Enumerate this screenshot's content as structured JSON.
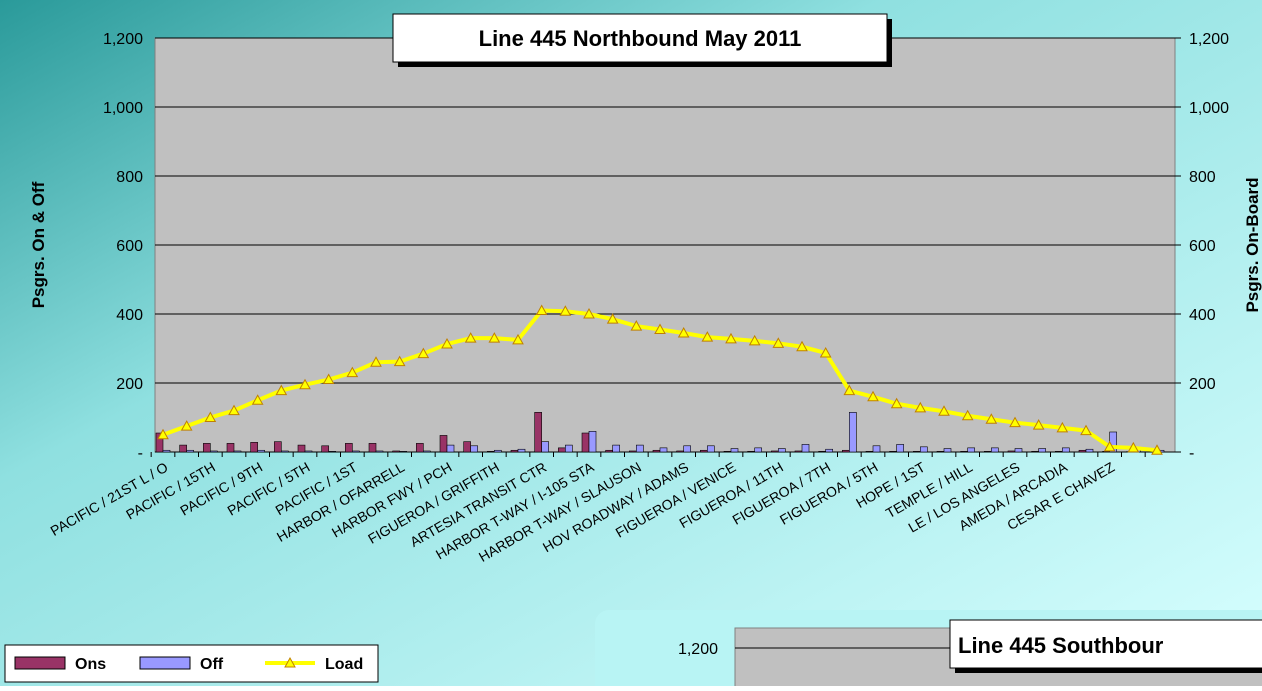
{
  "chart_data": [
    {
      "type": "bar-line",
      "title": "Line 445 Northbound May 2011",
      "y_label": "Psgrs. On & Off",
      "y2_label": "Psgrs. On-Board",
      "categories": [
        "PACIFIC / 21ST L / O",
        null,
        "PACIFIC / 15TH",
        null,
        "PACIFIC / 9TH",
        null,
        "PACIFIC / 5TH",
        null,
        "PACIFIC / 1ST",
        null,
        "HARBOR / OFARRELL",
        null,
        "HARBOR FWY / PCH",
        null,
        "FIGUEROA / GRIFFITH",
        null,
        "ARTESIA TRANSIT CTR",
        null,
        "HARBOR T-WAY / I-105 STA",
        null,
        "HARBOR T-WAY / SLAUSON",
        null,
        "HOV ROADWAY / ADAMS",
        null,
        "FIGUEROA / VENICE",
        null,
        "FIGUEROA / 11TH",
        null,
        "FIGUEROA / 7TH",
        null,
        "FIGUEROA / 5TH",
        null,
        "HOPE / 1ST",
        null,
        "TEMPLE / HILL",
        null,
        "LE / LOS ANGELES",
        null,
        "AMEDA / ARCADIA",
        null,
        "CESAR E CHAVEZ",
        null,
        null
      ],
      "series": [
        {
          "name": "Ons",
          "color": "#993366",
          "values": [
            55,
            20,
            25,
            25,
            28,
            30,
            20,
            18,
            25,
            25,
            3,
            25,
            48,
            30,
            2,
            5,
            115,
            12,
            55,
            5,
            3,
            5,
            3,
            5,
            2,
            2,
            3,
            3,
            2,
            5,
            2,
            2,
            2,
            2,
            2,
            2,
            3,
            2,
            2,
            5,
            2,
            1,
            0
          ]
        },
        {
          "name": "Off",
          "color": "#9999ff",
          "values": [
            5,
            5,
            3,
            3,
            5,
            3,
            3,
            2,
            3,
            3,
            2,
            3,
            20,
            18,
            5,
            8,
            30,
            20,
            60,
            20,
            20,
            12,
            18,
            18,
            10,
            12,
            10,
            22,
            8,
            115,
            18,
            22,
            15,
            10,
            12,
            12,
            10,
            10,
            12,
            8,
            58,
            8,
            5
          ]
        },
        {
          "name": "Load",
          "color": "#ffff00",
          "axis": "y2",
          "values": [
            50,
            75,
            100,
            120,
            150,
            178,
            195,
            210,
            230,
            260,
            262,
            285,
            313,
            330,
            330,
            325,
            410,
            408,
            400,
            385,
            365,
            355,
            345,
            333,
            328,
            322,
            315,
            305,
            287,
            178,
            160,
            140,
            128,
            118,
            105,
            95,
            85,
            78,
            70,
            62,
            15,
            12,
            5
          ]
        }
      ],
      "ylim": [
        0,
        1200
      ],
      "y2lim": [
        0,
        1200
      ],
      "yticks": [
        {
          "value": 0,
          "label": "-"
        },
        200,
        400,
        600,
        800,
        {
          "value": 1000,
          "label": "1,000"
        },
        {
          "value": 1200,
          "label": "1,200"
        }
      ],
      "y2ticks": [
        {
          "value": 0,
          "label": "-"
        },
        200,
        400,
        600,
        800,
        {
          "value": 1000,
          "label": "1,000"
        },
        {
          "value": 1200,
          "label": "1,200"
        }
      ],
      "grid": true,
      "legend": "bottom-left"
    },
    {
      "type": "bar",
      "title": "Line 445 Southbour",
      "ylim": [
        0,
        1200
      ],
      "yticks": [
        {
          "value": 1200,
          "label": "1,200"
        }
      ]
    }
  ]
}
